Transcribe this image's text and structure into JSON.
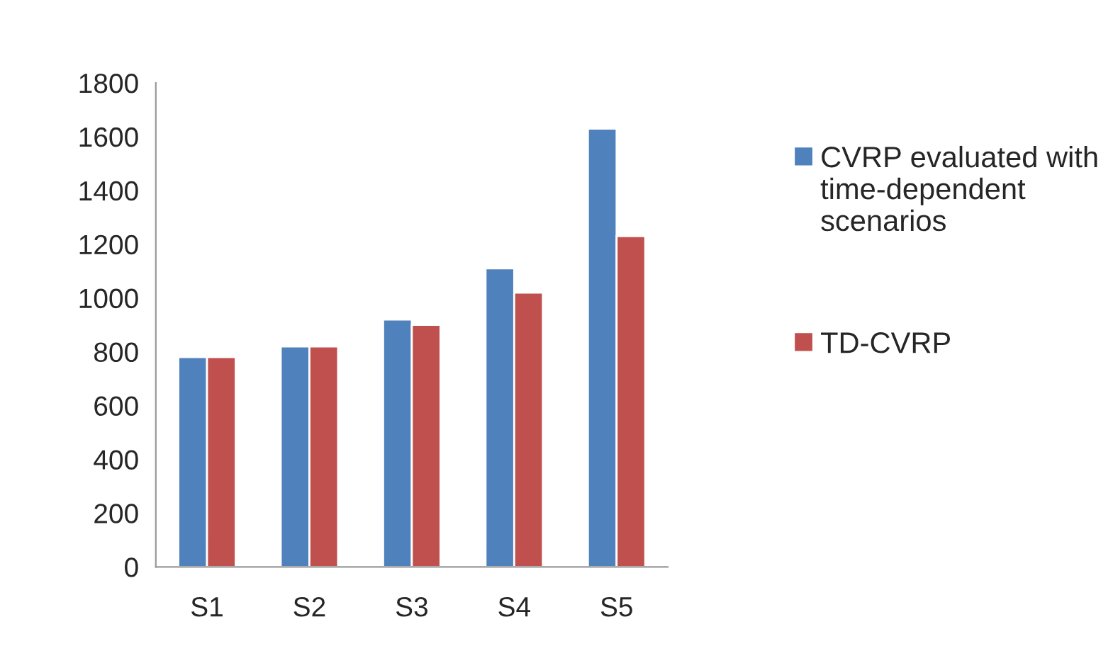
{
  "chart_data": {
    "type": "bar",
    "categories": [
      "S1",
      "S2",
      "S3",
      "S4",
      "S5"
    ],
    "series": [
      {
        "name": "CVRP evaluated with time-dependent scenarios",
        "color": "#4f81bd",
        "values": [
          780,
          820,
          920,
          1110,
          1630
        ]
      },
      {
        "name": "TD-CVRP",
        "color": "#c0504d",
        "values": [
          780,
          820,
          900,
          1020,
          1230
        ]
      }
    ],
    "ylim": [
      0,
      1800
    ],
    "yticks": [
      0,
      200,
      400,
      600,
      800,
      1000,
      1200,
      1400,
      1600,
      1800
    ],
    "grid": false,
    "legend": "right"
  }
}
